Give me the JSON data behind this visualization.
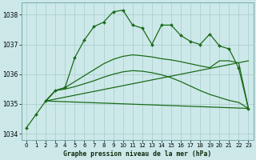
{
  "title": "Graphe pression niveau de la mer (hPa)",
  "bg_color": "#cce8e8",
  "grid_color": "#aacccc",
  "line_color": "#1a6b1a",
  "xlim": [
    -0.5,
    23.5
  ],
  "ylim": [
    1033.8,
    1038.4
  ],
  "x_ticks": [
    0,
    1,
    2,
    3,
    4,
    5,
    6,
    7,
    8,
    9,
    10,
    11,
    12,
    13,
    14,
    15,
    16,
    17,
    18,
    19,
    20,
    21,
    22,
    23
  ],
  "y_ticks": [
    1034,
    1035,
    1036,
    1037,
    1038
  ],
  "jagged_line": {
    "x": [
      0,
      1,
      2,
      3,
      4,
      5,
      6,
      7,
      8,
      9,
      10,
      11,
      12,
      13,
      14,
      15,
      16,
      17,
      18,
      19,
      20,
      21,
      22,
      23
    ],
    "y": [
      1034.2,
      1034.65,
      1035.1,
      1035.45,
      1035.55,
      1036.55,
      1037.15,
      1037.6,
      1037.75,
      1038.1,
      1038.15,
      1037.65,
      1037.55,
      1037.0,
      1037.65,
      1037.65,
      1037.3,
      1037.1,
      1037.0,
      1037.35,
      1036.95,
      1036.85,
      1036.2,
      1034.85
    ]
  },
  "smooth_lines": [
    {
      "x": [
        2,
        3,
        4,
        5,
        6,
        7,
        8,
        9,
        10,
        11,
        12,
        13,
        14,
        15,
        16,
        17,
        18,
        19,
        20,
        21,
        22,
        23
      ],
      "y": [
        1035.1,
        1035.45,
        1035.55,
        1035.75,
        1035.95,
        1036.15,
        1036.35,
        1036.5,
        1036.6,
        1036.65,
        1036.62,
        1036.58,
        1036.52,
        1036.48,
        1036.42,
        1036.35,
        1036.28,
        1036.22,
        1036.45,
        1036.45,
        1036.38,
        1034.85
      ]
    },
    {
      "x": [
        2,
        3,
        4,
        5,
        6,
        7,
        8,
        9,
        10,
        11,
        12,
        13,
        14,
        15,
        16,
        17,
        18,
        19,
        20,
        21,
        22,
        23
      ],
      "y": [
        1035.1,
        1035.45,
        1035.5,
        1035.58,
        1035.68,
        1035.78,
        1035.9,
        1036.0,
        1036.08,
        1036.12,
        1036.1,
        1036.05,
        1035.98,
        1035.88,
        1035.75,
        1035.6,
        1035.45,
        1035.32,
        1035.22,
        1035.12,
        1035.05,
        1034.85
      ]
    }
  ],
  "fan_lines": [
    {
      "x": [
        2,
        23
      ],
      "y": [
        1035.1,
        1036.45
      ]
    },
    {
      "x": [
        2,
        23
      ],
      "y": [
        1035.1,
        1034.85
      ]
    }
  ]
}
